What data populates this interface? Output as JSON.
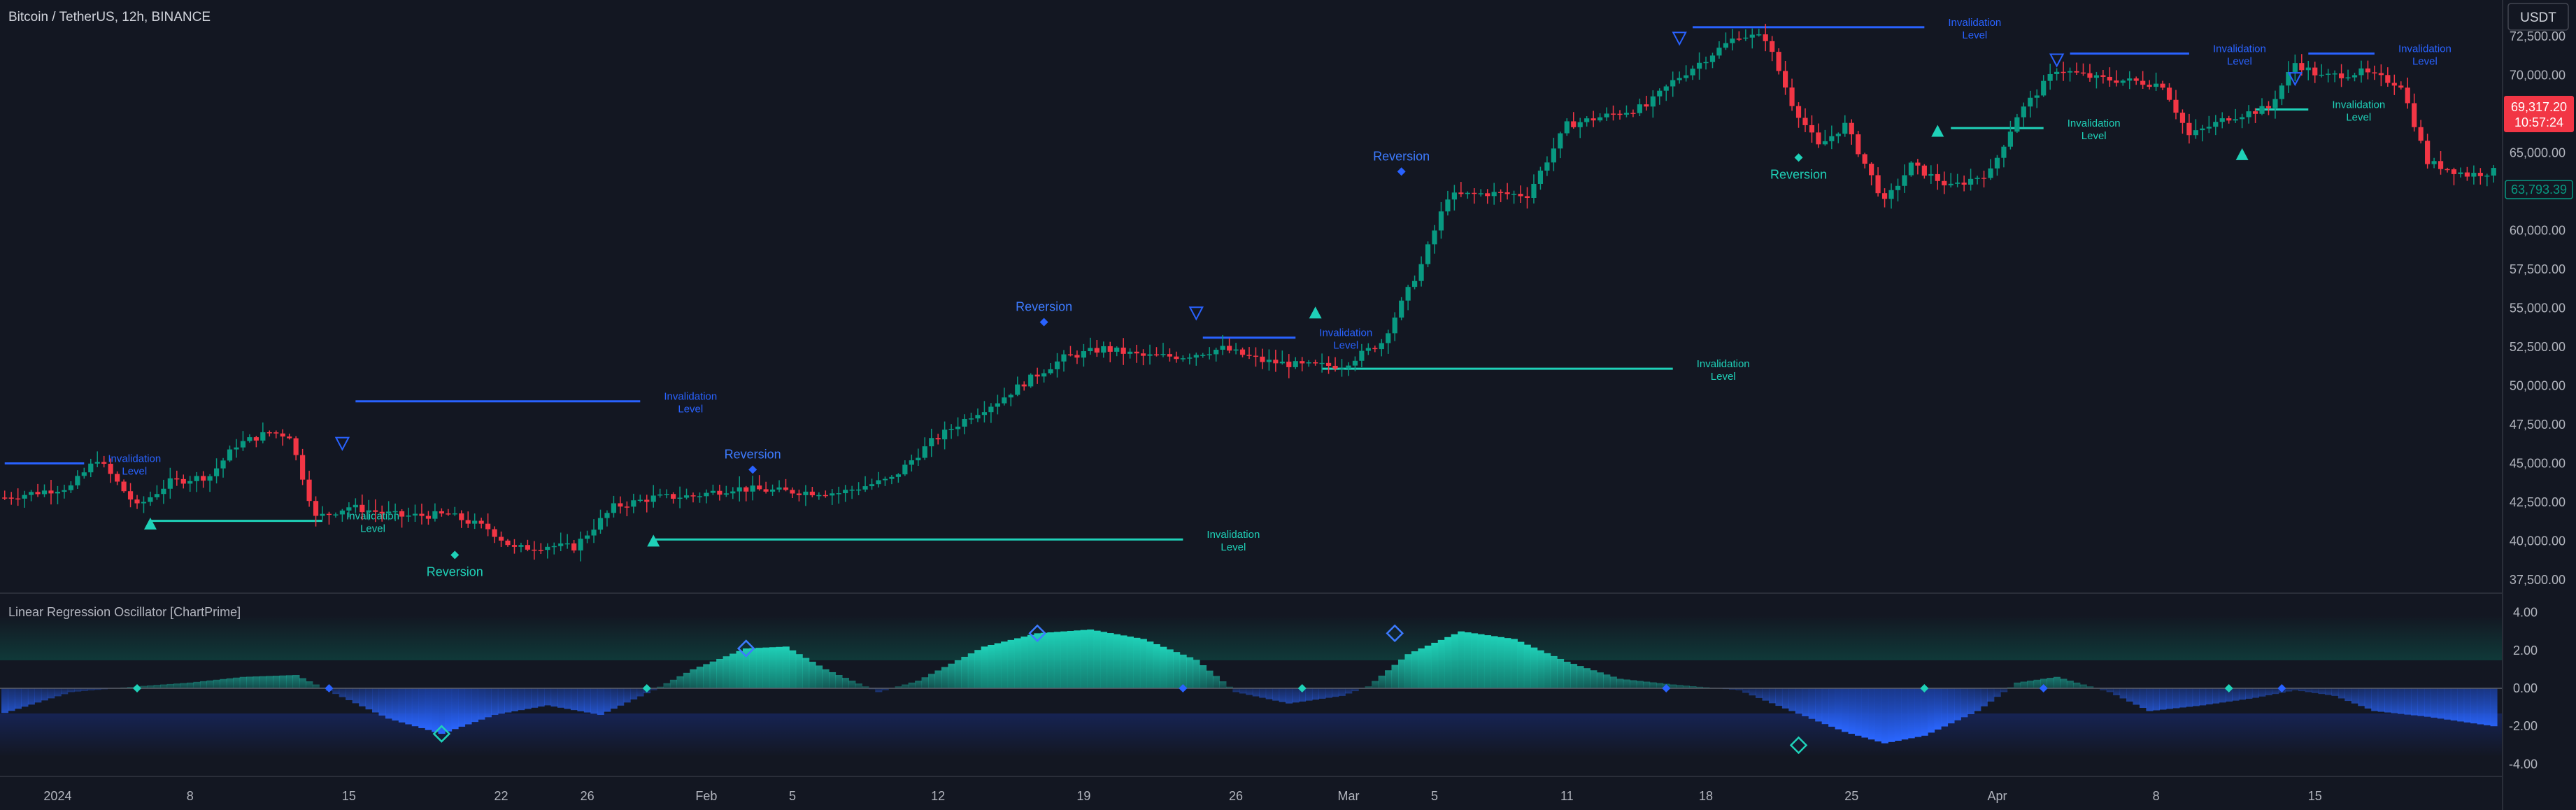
{
  "header": {
    "symbol_title": "Bitcoin / TetherUS, 12h, BINANCE",
    "currency_button": "USDT"
  },
  "price_axis": {
    "ticks": [
      "72,500.00",
      "70,000.00",
      "67,500.00",
      "65,000.00",
      "62,500.00",
      "60,000.00",
      "57,500.00",
      "55,000.00",
      "52,500.00",
      "50,000.00",
      "47,500.00",
      "45,000.00",
      "42,500.00",
      "40,000.00",
      "37,500.00"
    ],
    "tick_values": [
      72500,
      70000,
      67500,
      65000,
      62500,
      60000,
      57500,
      55000,
      52500,
      50000,
      47500,
      45000,
      42500,
      40000,
      37500
    ],
    "last_price": "69,317.20",
    "countdown": "10:57:24",
    "level_label": "63,793.39"
  },
  "osc_axis": {
    "ticks": [
      "4.00",
      "2.00",
      "0.00",
      "-2.00",
      "-4.00"
    ],
    "tick_values": [
      4,
      2,
      0,
      -2,
      -4
    ]
  },
  "indicator": {
    "title": "Linear Regression Oscillator [ChartPrime]"
  },
  "time_axis": {
    "labels": [
      "2024",
      "8",
      "15",
      "22",
      "26",
      "Feb",
      "5",
      "12",
      "19",
      "26",
      "Mar",
      "5",
      "11",
      "18",
      "25",
      "Apr",
      "8",
      "15"
    ]
  },
  "annotations": {
    "invalidation_lines": [
      "Invalidation",
      "Level"
    ],
    "reversion": "Reversion"
  },
  "colors": {
    "background": "#131722",
    "bull": "#089981",
    "bear": "#f23645",
    "teal": "#1fd1b8",
    "blue": "#2962ff",
    "text": "#b2b5be"
  },
  "chart_data": {
    "type": "candlestick",
    "x": [
      "2024",
      "8",
      "15",
      "22",
      "26",
      "Feb",
      "5",
      "12",
      "19",
      "26",
      "Mar",
      "5",
      "11",
      "18",
      "25",
      "Apr",
      "8",
      "15"
    ],
    "price_range": [
      37000,
      73500
    ],
    "oscillator_range": [
      -4.5,
      4.5
    ],
    "anchors": [
      [
        0,
        42800
      ],
      [
        10,
        43500
      ],
      [
        14,
        45300
      ],
      [
        20,
        42200
      ],
      [
        25,
        43800
      ],
      [
        31,
        44200
      ],
      [
        35,
        46200
      ],
      [
        40,
        47000
      ],
      [
        43,
        46800
      ],
      [
        47,
        41500
      ],
      [
        52,
        42200
      ],
      [
        60,
        41600
      ],
      [
        67,
        41700
      ],
      [
        73,
        40800
      ],
      [
        77,
        39500
      ],
      [
        82,
        39700
      ],
      [
        86,
        39600
      ],
      [
        92,
        42200
      ],
      [
        98,
        42800
      ],
      [
        104,
        42900
      ],
      [
        110,
        43400
      ],
      [
        118,
        43200
      ],
      [
        126,
        43100
      ],
      [
        134,
        44000
      ],
      [
        140,
        46400
      ],
      [
        146,
        48100
      ],
      [
        150,
        49000
      ],
      [
        154,
        50200
      ],
      [
        160,
        51800
      ],
      [
        166,
        52400
      ],
      [
        172,
        51900
      ],
      [
        178,
        51900
      ],
      [
        184,
        52400
      ],
      [
        190,
        51600
      ],
      [
        196,
        51300
      ],
      [
        202,
        51300
      ],
      [
        208,
        52800
      ],
      [
        214,
        57800
      ],
      [
        218,
        62200
      ],
      [
        224,
        62400
      ],
      [
        230,
        62300
      ],
      [
        236,
        66800
      ],
      [
        240,
        67200
      ],
      [
        244,
        67600
      ],
      [
        248,
        68000
      ],
      [
        252,
        69600
      ],
      [
        256,
        70800
      ],
      [
        262,
        72600
      ],
      [
        266,
        72400
      ],
      [
        270,
        68200
      ],
      [
        274,
        65400
      ],
      [
        278,
        66800
      ],
      [
        284,
        61800
      ],
      [
        288,
        64200
      ],
      [
        294,
        62800
      ],
      [
        300,
        63800
      ],
      [
        304,
        67400
      ],
      [
        310,
        70400
      ],
      [
        316,
        69800
      ],
      [
        322,
        69600
      ],
      [
        326,
        69400
      ],
      [
        330,
        66100
      ],
      [
        336,
        67300
      ],
      [
        342,
        67900
      ],
      [
        346,
        70800
      ],
      [
        350,
        69900
      ],
      [
        356,
        70200
      ],
      [
        362,
        69400
      ],
      [
        366,
        64400
      ],
      [
        372,
        63600
      ],
      [
        376,
        63800
      ]
    ],
    "oscillator_anchors": [
      [
        0,
        -1.3
      ],
      [
        10,
        -0.2
      ],
      [
        20,
        0.1
      ],
      [
        28,
        0.3
      ],
      [
        36,
        0.6
      ],
      [
        44,
        0.7
      ],
      [
        50,
        -0.3
      ],
      [
        58,
        -1.6
      ],
      [
        66,
        -2.4
      ],
      [
        74,
        -1.4
      ],
      [
        82,
        -0.9
      ],
      [
        90,
        -1.4
      ],
      [
        98,
        -0.1
      ],
      [
        104,
        1.0
      ],
      [
        112,
        2.1
      ],
      [
        118,
        2.2
      ],
      [
        124,
        1.0
      ],
      [
        132,
        -0.2
      ],
      [
        138,
        0.4
      ],
      [
        148,
        2.2
      ],
      [
        156,
        2.9
      ],
      [
        164,
        3.1
      ],
      [
        172,
        2.6
      ],
      [
        180,
        1.5
      ],
      [
        186,
        -0.2
      ],
      [
        194,
        -0.8
      ],
      [
        202,
        -0.4
      ],
      [
        206,
        0.1
      ],
      [
        212,
        1.8
      ],
      [
        220,
        3.0
      ],
      [
        228,
        2.6
      ],
      [
        236,
        1.4
      ],
      [
        244,
        0.5
      ],
      [
        252,
        0.2
      ],
      [
        262,
        -0.1
      ],
      [
        270,
        -1.2
      ],
      [
        278,
        -2.3
      ],
      [
        284,
        -2.9
      ],
      [
        290,
        -2.5
      ],
      [
        298,
        -1.2
      ],
      [
        304,
        0.3
      ],
      [
        310,
        0.6
      ],
      [
        318,
        -0.2
      ],
      [
        324,
        -1.2
      ],
      [
        332,
        -0.9
      ],
      [
        340,
        -0.5
      ],
      [
        346,
        -0.1
      ],
      [
        352,
        -0.4
      ],
      [
        358,
        -1.2
      ],
      [
        366,
        -1.5
      ],
      [
        376,
        -2.0
      ]
    ],
    "markers": {
      "teal_triangles": [
        [
          22,
          41100
        ],
        [
          98,
          40000
        ],
        [
          198,
          54700
        ],
        [
          292,
          66400
        ],
        [
          338,
          64900
        ]
      ],
      "blue_triangles": [
        [
          51,
          46300
        ],
        [
          180,
          54700
        ],
        [
          253,
          72400
        ],
        [
          310,
          71000
        ],
        [
          346,
          69800
        ]
      ],
      "blue_diamonds": [
        [
          113,
          44600
        ],
        [
          157,
          54100
        ],
        [
          211,
          63800
        ]
      ],
      "teal_diamonds": [
        [
          68,
          39100
        ],
        [
          271,
          64700
        ]
      ],
      "osc_teal_diamonds": [
        [
          20,
          0
        ],
        [
          97,
          0
        ],
        [
          196,
          0
        ],
        [
          290,
          0
        ],
        [
          336,
          0
        ]
      ],
      "osc_blue_diamonds": [
        [
          49,
          0
        ],
        [
          178,
          0
        ],
        [
          251,
          0
        ],
        [
          308,
          0
        ],
        [
          344,
          0
        ]
      ],
      "osc_blue_hollow": [
        [
          66,
          -2.4
        ],
        [
          271,
          -3.0
        ]
      ],
      "osc_teal_hollow": [
        [
          112,
          2.1
        ],
        [
          156,
          2.9
        ],
        [
          210,
          2.9
        ]
      ]
    },
    "invalidation_levels": [
      {
        "color": "blue",
        "value": 45000,
        "from": 0,
        "to": 12
      },
      {
        "color": "teal",
        "value": 41300,
        "from": 22,
        "to": 48
      },
      {
        "color": "blue",
        "value": 49000,
        "from": 53,
        "to": 96
      },
      {
        "color": "teal",
        "value": 40100,
        "from": 98,
        "to": 178
      },
      {
        "color": "blue",
        "value": 53100,
        "from": 181,
        "to": 195
      },
      {
        "color": "teal",
        "value": 51100,
        "from": 199,
        "to": 252
      },
      {
        "color": "blue",
        "value": 73100,
        "from": 255,
        "to": 290
      },
      {
        "color": "teal",
        "value": 66600,
        "from": 294,
        "to": 308
      },
      {
        "color": "blue",
        "value": 71400,
        "from": 312,
        "to": 330
      },
      {
        "color": "teal",
        "value": 67800,
        "from": 340,
        "to": 348
      },
      {
        "color": "blue",
        "value": 71400,
        "from": 348,
        "to": 358
      }
    ]
  }
}
